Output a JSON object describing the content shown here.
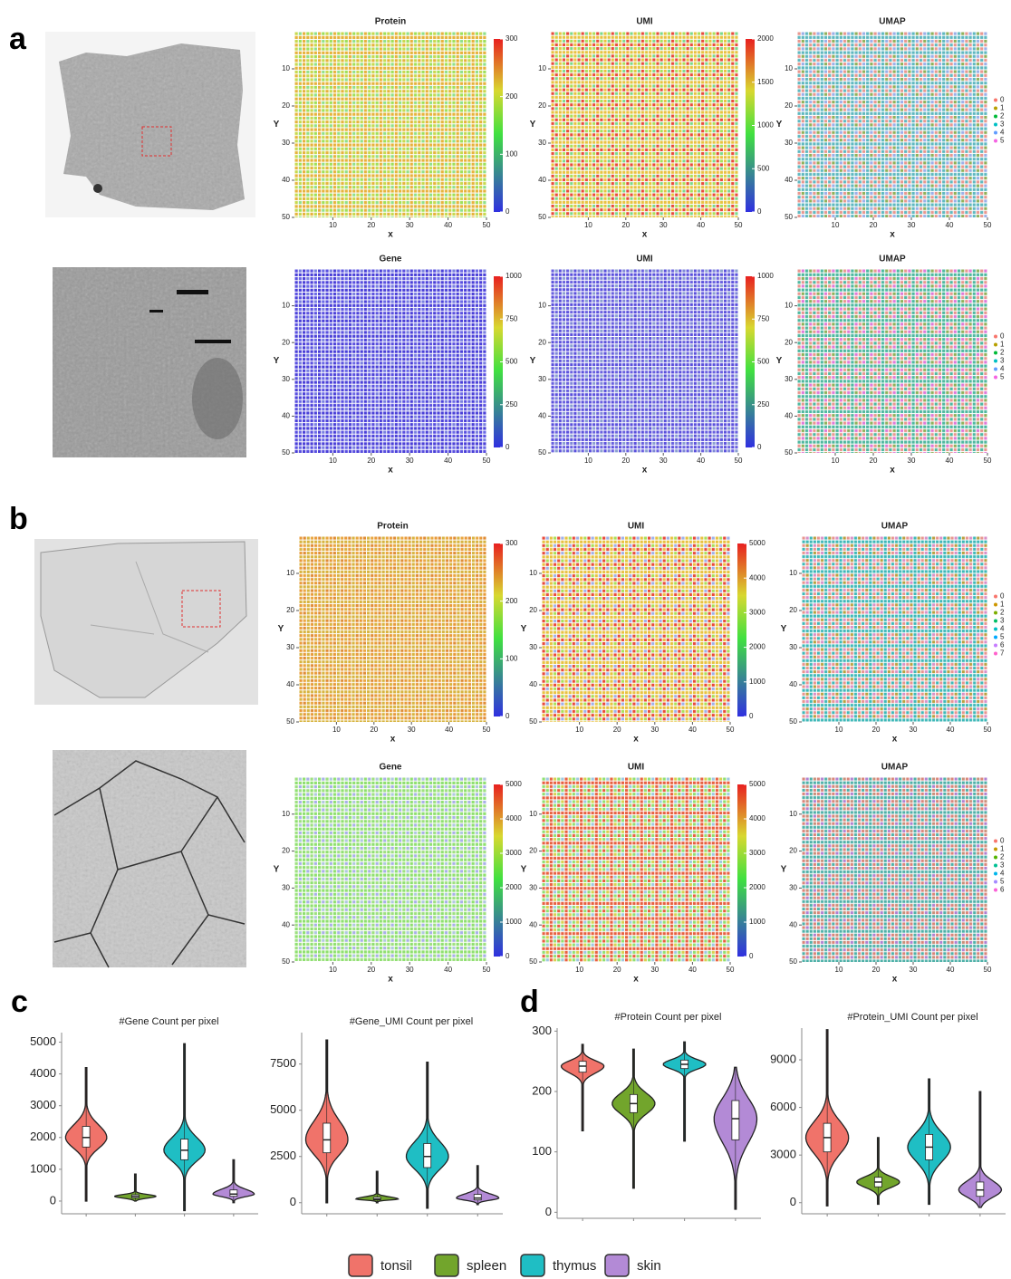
{
  "panel_labels": [
    "a",
    "b",
    "c",
    "d"
  ],
  "legend": {
    "names": [
      "tonsil",
      "spleen",
      "thymus",
      "skin"
    ],
    "colors": [
      "#f0736a",
      "#72a52c",
      "#1fbec4",
      "#b38ad6"
    ]
  },
  "chart_data": [
    {
      "type": "heatmap",
      "title": "Protein",
      "xlabel": "x",
      "ylabel": "Y",
      "xlim": [
        0,
        50
      ],
      "ylim": [
        50,
        0
      ],
      "xticks": [
        10,
        20,
        30,
        40,
        50
      ],
      "yticks": [
        10,
        20,
        30,
        40,
        50
      ],
      "colorbar_lim": [
        0,
        300
      ],
      "colorbar_ticks": [
        0,
        100,
        200,
        300
      ],
      "colors": [
        "#c7d94e",
        "#9ee05a",
        "#e6b33c",
        "#8fe08a"
      ]
    },
    {
      "type": "heatmap",
      "title": "UMI",
      "xlabel": "x",
      "ylabel": "Y",
      "xlim": [
        0,
        50
      ],
      "ylim": [
        50,
        0
      ],
      "xticks": [
        10,
        20,
        30,
        40,
        50
      ],
      "yticks": [
        10,
        20,
        30,
        40,
        50
      ],
      "colorbar_lim": [
        0,
        2000
      ],
      "colorbar_ticks": [
        0,
        500,
        1000,
        1500,
        2000
      ],
      "colors": [
        "#e84a3a",
        "#a8e05a",
        "#e8c240",
        "#7bd98a"
      ]
    },
    {
      "type": "umap",
      "title": "UMAP",
      "xlabel": "x",
      "ylabel": "Y",
      "xlim": [
        0,
        50
      ],
      "ylim": [
        50,
        0
      ],
      "xticks": [
        10,
        20,
        30,
        40,
        50
      ],
      "yticks": [
        10,
        20,
        30,
        40,
        50
      ],
      "clusters": [
        "0",
        "1",
        "2",
        "3",
        "4",
        "5"
      ],
      "cluster_colors": [
        "#F8766D",
        "#B79F00",
        "#00BA38",
        "#00BFC4",
        "#619CFF",
        "#F564E3"
      ],
      "colors": [
        "#e8978f",
        "#8fb05a",
        "#5fb8c0",
        "#9bb0e8"
      ]
    },
    {
      "type": "heatmap",
      "title": "Gene",
      "xlabel": "x",
      "ylabel": "Y",
      "xlim": [
        0,
        50
      ],
      "ylim": [
        50,
        0
      ],
      "xticks": [
        10,
        20,
        30,
        40,
        50
      ],
      "yticks": [
        10,
        20,
        30,
        40,
        50
      ],
      "colorbar_lim": [
        0,
        1000
      ],
      "colorbar_ticks": [
        0,
        250,
        500,
        750,
        1000
      ],
      "colors": [
        "#5a50e0",
        "#6c6ae6",
        "#4a40d8",
        "#7a80e0"
      ]
    },
    {
      "type": "heatmap",
      "title": "UMI",
      "xlabel": "x",
      "ylabel": "Y",
      "xlim": [
        0,
        50
      ],
      "ylim": [
        50,
        0
      ],
      "xticks": [
        10,
        20,
        30,
        40,
        50
      ],
      "yticks": [
        10,
        20,
        30,
        40,
        50
      ],
      "colorbar_lim": [
        0,
        1000
      ],
      "colorbar_ticks": [
        0,
        250,
        500,
        750,
        1000
      ],
      "colors": [
        "#6a60e0",
        "#7f88d8",
        "#5a50dc",
        "#8aa0d0"
      ]
    },
    {
      "type": "umap",
      "title": "UMAP",
      "xlabel": "x",
      "ylabel": "Y",
      "xlim": [
        0,
        50
      ],
      "ylim": [
        50,
        0
      ],
      "xticks": [
        10,
        20,
        30,
        40,
        50
      ],
      "yticks": [
        10,
        20,
        30,
        40,
        50
      ],
      "clusters": [
        "0",
        "1",
        "2",
        "3",
        "4",
        "5"
      ],
      "cluster_colors": [
        "#F8766D",
        "#B79F00",
        "#00BA38",
        "#00BFC4",
        "#619CFF",
        "#F564E3"
      ],
      "colors": [
        "#e8978f",
        "#8fb05a",
        "#4fb8a0",
        "#e07ad8"
      ]
    },
    {
      "type": "heatmap",
      "title": "Protein",
      "xlabel": "x",
      "ylabel": "Y",
      "xlim": [
        0,
        50
      ],
      "ylim": [
        50,
        0
      ],
      "xticks": [
        10,
        20,
        30,
        40,
        50
      ],
      "yticks": [
        10,
        20,
        30,
        40,
        50
      ],
      "colorbar_lim": [
        0,
        300
      ],
      "colorbar_ticks": [
        0,
        100,
        200,
        300
      ],
      "colors": [
        "#e89a3a",
        "#eaa640",
        "#d8b440",
        "#e08c36"
      ]
    },
    {
      "type": "heatmap",
      "title": "UMI",
      "xlabel": "x",
      "ylabel": "Y",
      "xlim": [
        0,
        50
      ],
      "ylim": [
        50,
        0
      ],
      "xticks": [
        10,
        20,
        30,
        40,
        50
      ],
      "yticks": [
        10,
        20,
        30,
        40,
        50
      ],
      "colorbar_lim": [
        0,
        5000
      ],
      "colorbar_ticks": [
        0,
        1000,
        2000,
        3000,
        4000,
        5000
      ],
      "colors": [
        "#e84a3a",
        "#a8e05a",
        "#e8c240",
        "#9fb0e8"
      ]
    },
    {
      "type": "umap",
      "title": "UMAP",
      "xlabel": "x",
      "ylabel": "Y",
      "xlim": [
        0,
        50
      ],
      "ylim": [
        50,
        0
      ],
      "xticks": [
        10,
        20,
        30,
        40,
        50
      ],
      "yticks": [
        10,
        20,
        30,
        40,
        50
      ],
      "clusters": [
        "0",
        "1",
        "2",
        "3",
        "4",
        "5",
        "6",
        "7"
      ],
      "cluster_colors": [
        "#F8766D",
        "#CD9600",
        "#7CAE00",
        "#00BE67",
        "#00BFC4",
        "#00A9FF",
        "#C77CFF",
        "#FF61CC"
      ],
      "colors": [
        "#e8958f",
        "#b8a040",
        "#3fb8b8",
        "#d890c8"
      ]
    },
    {
      "type": "heatmap",
      "title": "Gene",
      "xlabel": "x",
      "ylabel": "Y",
      "xlim": [
        0,
        50
      ],
      "ylim": [
        50,
        0
      ],
      "xticks": [
        10,
        20,
        30,
        40,
        50
      ],
      "yticks": [
        10,
        20,
        30,
        40,
        50
      ],
      "colorbar_lim": [
        0,
        5000
      ],
      "colorbar_ticks": [
        0,
        1000,
        2000,
        3000,
        4000,
        5000
      ],
      "colors": [
        "#9ee080",
        "#a8b0e8",
        "#8fe070",
        "#b0c8e0"
      ]
    },
    {
      "type": "heatmap",
      "title": "UMI",
      "xlabel": "x",
      "ylabel": "Y",
      "xlim": [
        0,
        50
      ],
      "ylim": [
        50,
        0
      ],
      "xticks": [
        10,
        20,
        30,
        40,
        50
      ],
      "yticks": [
        10,
        20,
        30,
        40,
        50
      ],
      "colorbar_lim": [
        0,
        5000
      ],
      "colorbar_ticks": [
        0,
        1000,
        2000,
        3000,
        4000,
        5000
      ],
      "colors": [
        "#8fe070",
        "#d8d050",
        "#e86040",
        "#a0c8e0"
      ]
    },
    {
      "type": "umap",
      "title": "UMAP",
      "xlabel": "x",
      "ylabel": "Y",
      "xlim": [
        0,
        50
      ],
      "ylim": [
        50,
        0
      ],
      "xticks": [
        10,
        20,
        30,
        40,
        50
      ],
      "yticks": [
        10,
        20,
        30,
        40,
        50
      ],
      "clusters": [
        "0",
        "1",
        "2",
        "3",
        "4",
        "5",
        "6"
      ],
      "cluster_colors": [
        "#F8766D",
        "#C49A00",
        "#53B400",
        "#00C094",
        "#00B6EB",
        "#A58AFF",
        "#FB61D7"
      ],
      "colors": [
        "#d8857a",
        "#c8907a",
        "#4fb0a8",
        "#b080d0"
      ]
    },
    {
      "type": "violin",
      "title": "#Gene Count per pixel",
      "ylim": [
        -400,
        5300
      ],
      "yticks": [
        0,
        1000,
        2000,
        3000,
        4000,
        5000
      ],
      "values": [
        {
          "min": 0,
          "q1": 1700,
          "median": 2000,
          "q3": 2350,
          "max": 4200
        },
        {
          "min": 0,
          "q1": 100,
          "median": 150,
          "q3": 200,
          "max": 850
        },
        {
          "min": -300,
          "q1": 1300,
          "median": 1600,
          "q3": 1950,
          "max": 4950
        },
        {
          "min": -50,
          "q1": 150,
          "median": 220,
          "q3": 350,
          "max": 1300
        }
      ]
    },
    {
      "type": "violin",
      "title": "#Gene_UMI Count per pixel",
      "ylim": [
        -600,
        9200
      ],
      "yticks": [
        0,
        2500,
        5000,
        7500
      ],
      "values": [
        {
          "min": 0,
          "q1": 2700,
          "median": 3400,
          "q3": 4300,
          "max": 8800
        },
        {
          "min": 0,
          "q1": 150,
          "median": 200,
          "q3": 300,
          "max": 1700
        },
        {
          "min": -300,
          "q1": 1900,
          "median": 2500,
          "q3": 3200,
          "max": 7600
        },
        {
          "min": -100,
          "q1": 150,
          "median": 250,
          "q3": 450,
          "max": 2000
        }
      ]
    },
    {
      "type": "violin",
      "title": "#Protein Count per pixel",
      "ylim": [
        -10,
        305
      ],
      "yticks": [
        0,
        100,
        200,
        300
      ],
      "values": [
        {
          "min": 135,
          "q1": 232,
          "median": 242,
          "q3": 250,
          "max": 278
        },
        {
          "min": 40,
          "q1": 165,
          "median": 180,
          "q3": 195,
          "max": 270
        },
        {
          "min": 118,
          "q1": 238,
          "median": 245,
          "q3": 252,
          "max": 282
        },
        {
          "min": 5,
          "q1": 120,
          "median": 155,
          "q3": 185,
          "max": 240
        }
      ]
    },
    {
      "type": "violin",
      "title": "#Protein_UMI Count per pixel",
      "ylim": [
        -700,
        11000
      ],
      "yticks": [
        0,
        3000,
        6000,
        9000
      ],
      "values": [
        {
          "min": -200,
          "q1": 3200,
          "median": 4100,
          "q3": 5000,
          "max": 10900
        },
        {
          "min": -100,
          "q1": 1000,
          "median": 1300,
          "q3": 1600,
          "max": 4100
        },
        {
          "min": -100,
          "q1": 2700,
          "median": 3500,
          "q3": 4300,
          "max": 7800
        },
        {
          "min": -300,
          "q1": 400,
          "median": 800,
          "q3": 1300,
          "max": 7000
        }
      ]
    }
  ]
}
